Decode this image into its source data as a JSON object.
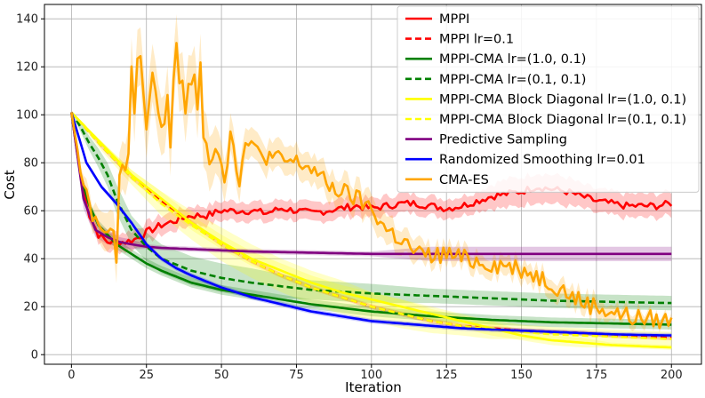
{
  "chart_data": {
    "type": "line",
    "title": "",
    "xlabel": "Iteration",
    "ylabel": "Cost",
    "xlim": [
      -9,
      210
    ],
    "ylim": [
      -4,
      146
    ],
    "xticks": [
      0,
      25,
      50,
      75,
      100,
      125,
      150,
      175,
      200
    ],
    "yticks": [
      0,
      20,
      40,
      60,
      80,
      100,
      120,
      140
    ],
    "grid": true,
    "legend_position": "top-right",
    "series": [
      {
        "name": "MPPI",
        "color": "#ff0000",
        "dash": "solid",
        "noise": 1.5,
        "x": [
          0,
          3,
          6,
          9,
          12,
          15,
          18,
          21,
          25,
          30,
          35,
          40,
          45,
          50,
          55,
          60,
          65,
          70,
          75,
          80,
          85,
          90,
          95,
          100,
          105,
          110,
          115,
          120,
          125,
          130,
          135,
          140,
          145,
          150,
          155,
          160,
          165,
          170,
          175,
          180,
          185,
          190,
          195,
          200
        ],
        "y": [
          101,
          75,
          58,
          50,
          47,
          47,
          47,
          48,
          51,
          54,
          56,
          58,
          58,
          60,
          60,
          60,
          59,
          61,
          60,
          59,
          60,
          61,
          62,
          61,
          62,
          63,
          63,
          62,
          61,
          62,
          64,
          66,
          67,
          68,
          70,
          69,
          68,
          66,
          64,
          63,
          62,
          62,
          62,
          63
        ],
        "band": [
          1,
          1,
          2,
          3,
          4,
          4,
          4,
          4,
          4,
          4,
          4,
          4,
          4,
          4,
          4,
          4,
          4,
          4,
          4,
          4,
          4,
          4,
          4,
          4,
          4,
          4,
          4,
          4,
          4,
          4,
          4,
          5,
          6,
          6,
          6,
          6,
          6,
          5,
          5,
          5,
          5,
          5,
          5,
          5
        ]
      },
      {
        "name": "MPPI lr=0.1",
        "color": "#ff0000",
        "dash": "dashed",
        "noise": 0,
        "x": [
          0,
          10,
          20,
          30,
          40,
          50,
          60,
          70,
          80,
          90,
          100,
          110,
          120,
          130,
          140,
          150,
          160,
          170,
          180,
          190,
          200
        ],
        "y": [
          101,
          87,
          74,
          64,
          55,
          46,
          39,
          33,
          28,
          24,
          20,
          17,
          14,
          12,
          11,
          10,
          9.5,
          9,
          8,
          7.5,
          7
        ],
        "band": [
          0,
          1,
          1,
          1,
          1,
          1,
          1,
          1,
          1,
          1,
          1,
          1,
          1,
          1,
          1,
          1,
          1,
          1,
          1,
          1,
          1
        ]
      },
      {
        "name": "MPPI-CMA lr=(1.0, 0.1)",
        "color": "#008000",
        "dash": "solid",
        "noise": 0,
        "x": [
          0,
          3,
          6,
          9,
          12,
          15,
          20,
          25,
          30,
          40,
          50,
          60,
          70,
          80,
          100,
          120,
          140,
          160,
          180,
          200
        ],
        "y": [
          101,
          75,
          62,
          54,
          50,
          46,
          42,
          38,
          35,
          30,
          27,
          25,
          23,
          21,
          18,
          16,
          14.5,
          13.5,
          13,
          12.5
        ],
        "band": [
          0,
          2,
          2,
          2,
          2,
          2,
          2,
          2,
          2,
          2,
          2,
          2,
          2,
          2,
          2,
          2,
          2,
          2,
          2,
          2
        ]
      },
      {
        "name": "MPPI-CMA lr=(0.1, 0.1)",
        "color": "#008000",
        "dash": "dashed",
        "noise": 0,
        "x": [
          0,
          3,
          6,
          9,
          12,
          15,
          20,
          25,
          30,
          40,
          50,
          60,
          70,
          80,
          100,
          120,
          140,
          160,
          180,
          200
        ],
        "y": [
          101,
          95,
          88,
          82,
          75,
          65,
          52,
          45,
          40,
          35,
          32,
          30,
          28.5,
          27,
          25.5,
          24.5,
          23.5,
          22.5,
          22,
          21.5
        ],
        "band": [
          0,
          2,
          3,
          4,
          5,
          6,
          6,
          6,
          6,
          6,
          6,
          6,
          5,
          4,
          4,
          3,
          3,
          3,
          3,
          3
        ]
      },
      {
        "name": "MPPI-CMA Block Diagonal lr=(1.0, 0.1)",
        "color": "#ffff00",
        "dash": "solid",
        "noise": 0,
        "x": [
          0,
          10,
          20,
          30,
          40,
          50,
          60,
          70,
          80,
          90,
          100,
          110,
          120,
          130,
          140,
          150,
          160,
          170,
          180,
          190,
          200
        ],
        "y": [
          101,
          88,
          75,
          65,
          55,
          47,
          40,
          35,
          30,
          26,
          23,
          20,
          17,
          14,
          11,
          8,
          6,
          5,
          4,
          3.5,
          3
        ],
        "band": [
          0,
          1,
          2,
          3,
          3,
          3,
          3,
          3,
          3,
          3,
          3,
          3,
          3,
          3,
          3,
          2,
          2,
          2,
          1,
          1,
          1
        ]
      },
      {
        "name": "MPPI-CMA Block Diagonal lr=(0.1, 0.1)",
        "color": "#ffff00",
        "dash": "dashed",
        "noise": 0,
        "x": [
          0,
          10,
          20,
          30,
          40,
          50,
          60,
          70,
          80,
          90,
          100,
          110,
          120,
          130,
          140,
          150,
          160,
          170,
          180,
          190,
          200
        ],
        "y": [
          101,
          87,
          74,
          63,
          54,
          46,
          39,
          33,
          28,
          24,
          20,
          17,
          14,
          12,
          10.5,
          9.5,
          8.5,
          8,
          7.5,
          7,
          6.5
        ],
        "band": [
          0,
          2,
          3,
          5,
          6,
          7,
          7,
          7,
          7,
          7,
          6,
          6,
          5,
          4,
          4,
          3,
          3,
          3,
          3,
          3,
          3
        ]
      },
      {
        "name": "Predictive Sampling",
        "color": "#800080",
        "dash": "solid",
        "noise": 0,
        "x": [
          0,
          4,
          8,
          12,
          16,
          20,
          25,
          30,
          40,
          50,
          60,
          80,
          100,
          120,
          140,
          160,
          180,
          200
        ],
        "y": [
          101,
          65,
          52,
          49,
          47,
          46,
          45,
          44.5,
          44,
          43.5,
          43,
          42.5,
          42,
          42,
          42,
          42,
          42,
          42
        ],
        "band": [
          0,
          4,
          3,
          3,
          2,
          2,
          1,
          1,
          1,
          1,
          1,
          1,
          1,
          3,
          3,
          3,
          3,
          3
        ]
      },
      {
        "name": "Randomized Smoothing lr=0.01",
        "color": "#0000ff",
        "dash": "solid",
        "noise": 0,
        "x": [
          0,
          5,
          10,
          15,
          20,
          25,
          30,
          35,
          40,
          50,
          60,
          70,
          80,
          90,
          100,
          110,
          120,
          130,
          140,
          150,
          160,
          170,
          180,
          190,
          200
        ],
        "y": [
          101,
          80,
          70,
          63,
          55,
          46,
          40,
          36,
          33,
          28,
          24,
          21,
          18,
          16,
          14,
          13,
          12,
          11,
          10.5,
          10,
          9.5,
          9,
          8.5,
          8.2,
          8
        ],
        "band": [
          0,
          1,
          1,
          1,
          1,
          1,
          1,
          1,
          1,
          1,
          1,
          1,
          1,
          1,
          1,
          1,
          1,
          1,
          1,
          1,
          1,
          1,
          1,
          1,
          1
        ]
      },
      {
        "name": "CMA-ES",
        "color": "#ffa500",
        "dash": "solid",
        "noise": 4,
        "x": [
          0,
          4,
          8,
          11,
          14,
          17,
          20,
          22,
          25,
          28,
          30,
          33,
          35,
          38,
          42,
          45,
          48,
          52,
          55,
          60,
          65,
          70,
          75,
          80,
          85,
          90,
          95,
          100,
          105,
          110,
          115,
          120,
          125,
          130,
          135,
          140,
          145,
          150,
          155,
          160,
          165,
          170,
          175,
          180,
          185,
          190,
          195,
          200
        ],
        "y": [
          101,
          70,
          55,
          52,
          48,
          65,
          112,
          118,
          107,
          101,
          110,
          100,
          118,
          103,
          112,
          95,
          88,
          86,
          86,
          86,
          83,
          81,
          80,
          78,
          71,
          68,
          65,
          61,
          52,
          48,
          42,
          41,
          42,
          40,
          39,
          38,
          37,
          36,
          33,
          30,
          26,
          22,
          20,
          18,
          16,
          15,
          14.5,
          14
        ],
        "band": [
          0,
          4,
          6,
          8,
          8,
          10,
          12,
          12,
          12,
          12,
          12,
          12,
          12,
          12,
          12,
          12,
          10,
          8,
          7,
          6,
          6,
          6,
          6,
          6,
          6,
          6,
          6,
          6,
          6,
          5,
          5,
          4,
          4,
          4,
          4,
          4,
          4,
          4,
          4,
          4,
          4,
          4,
          4,
          3,
          3,
          3,
          2,
          2
        ]
      }
    ]
  }
}
